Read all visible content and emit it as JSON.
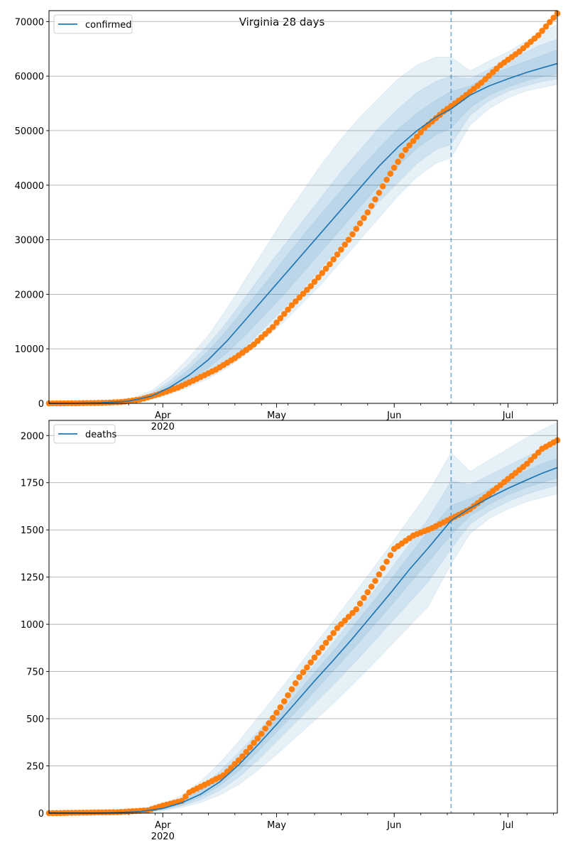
{
  "title": "Virginia 28 days",
  "chart_data": [
    {
      "type": "line",
      "legend": [
        "confirmed"
      ],
      "legend_position": "upper-left",
      "grid": "y",
      "x_type": "date",
      "xlim": [
        "2020-03-02",
        "2020-07-14"
      ],
      "forecast_start": "2020-06-16",
      "xticks_major": [
        {
          "date": "2020-04-01",
          "label": "Apr",
          "sublabel": "2020"
        },
        {
          "date": "2020-05-01",
          "label": "May",
          "sublabel": ""
        },
        {
          "date": "2020-06-01",
          "label": "Jun",
          "sublabel": ""
        },
        {
          "date": "2020-07-01",
          "label": "Jul",
          "sublabel": ""
        }
      ],
      "yticks": [
        "0",
        "10000",
        "20000",
        "30000",
        "40000",
        "50000",
        "60000",
        "70000"
      ],
      "ylim": [
        0,
        72000
      ],
      "series": [
        {
          "name": "confirmed",
          "kind": "model-median",
          "color": "#1f77b4",
          "x": [
            "2020-03-02",
            "2020-03-09",
            "2020-03-16",
            "2020-03-23",
            "2020-03-29",
            "2020-04-03",
            "2020-04-08",
            "2020-04-13",
            "2020-04-18",
            "2020-04-23",
            "2020-04-28",
            "2020-05-03",
            "2020-05-08",
            "2020-05-13",
            "2020-05-18",
            "2020-05-23",
            "2020-05-28",
            "2020-06-02",
            "2020-06-07",
            "2020-06-12",
            "2020-06-16",
            "2020-06-21",
            "2020-06-26",
            "2020-07-01",
            "2020-07-06",
            "2020-07-10",
            "2020-07-14"
          ],
          "y": [
            0,
            20,
            100,
            400,
            1300,
            3000,
            5200,
            8000,
            11500,
            15500,
            19500,
            23500,
            27500,
            31500,
            35500,
            39500,
            43500,
            47000,
            50000,
            52500,
            54000,
            56500,
            58200,
            59500,
            60700,
            61500,
            62300
          ],
          "bands": [
            {
              "lo": [
                0,
                0,
                60,
                250,
                750,
                1700,
                3000,
                4500,
                6500,
                9000,
                12000,
                15000,
                18500,
                22000,
                26000,
                30000,
                34000,
                38000,
                41500,
                44000,
                45000,
                51000,
                54000,
                56000,
                57300,
                57900,
                58500
              ],
              "hi": [
                0,
                50,
                200,
                700,
                2300,
                5000,
                8500,
                12500,
                17500,
                23000,
                28500,
                34000,
                39000,
                44000,
                48500,
                52500,
                56000,
                59500,
                62000,
                63500,
                63500,
                61000,
                62800,
                64500,
                66500,
                68000,
                69500
              ]
            },
            {
              "lo": [
                0,
                0,
                70,
                280,
                900,
                2000,
                3500,
                5500,
                7800,
                10500,
                14000,
                17500,
                21000,
                25000,
                29000,
                33000,
                37000,
                40500,
                44000,
                46500,
                47500,
                52800,
                55500,
                57200,
                58300,
                59000,
                59500
              ],
              "hi": [
                0,
                40,
                150,
                550,
                1900,
                4200,
                7200,
                10800,
                15000,
                19700,
                24500,
                29000,
                33500,
                38000,
                42500,
                46500,
                50500,
                54000,
                57000,
                59000,
                60000,
                59500,
                61300,
                63000,
                64500,
                65800,
                66800
              ]
            },
            {
              "lo": [
                0,
                0,
                80,
                330,
                1050,
                2400,
                4200,
                6500,
                9300,
                12700,
                16300,
                20000,
                24000,
                28000,
                32000,
                36000,
                40000,
                43500,
                46800,
                49200,
                50500,
                54200,
                56500,
                58000,
                59200,
                59900,
                60400
              ],
              "hi": [
                0,
                30,
                120,
                480,
                1600,
                3600,
                6300,
                9600,
                13500,
                17800,
                22000,
                26500,
                30800,
                35000,
                39000,
                43000,
                46800,
                50300,
                53200,
                55600,
                57200,
                58200,
                60200,
                61500,
                62800,
                63800,
                64800
              ]
            }
          ]
        },
        {
          "name": "",
          "kind": "observed",
          "color": "#ff7f0e",
          "x": [
            "2020-03-02",
            "2020-03-09",
            "2020-03-16",
            "2020-03-21",
            "2020-03-26",
            "2020-03-31",
            "2020-04-05",
            "2020-04-10",
            "2020-04-15",
            "2020-04-20",
            "2020-04-25",
            "2020-04-30",
            "2020-05-05",
            "2020-05-10",
            "2020-05-15",
            "2020-05-20",
            "2020-05-25",
            "2020-05-30",
            "2020-06-04",
            "2020-06-09",
            "2020-06-14",
            "2020-06-19",
            "2020-06-24",
            "2020-06-29",
            "2020-07-04",
            "2020-07-09",
            "2020-07-14"
          ],
          "y": [
            0,
            30,
            100,
            250,
            700,
            1700,
            2900,
            4500,
            6200,
            8300,
            10800,
            14000,
            18000,
            21500,
            25500,
            30000,
            35000,
            41000,
            46500,
            50500,
            53500,
            56000,
            58800,
            62000,
            64500,
            67500,
            71500
          ]
        }
      ]
    },
    {
      "type": "line",
      "legend": [
        "deaths"
      ],
      "legend_position": "upper-left",
      "grid": "y",
      "x_type": "date",
      "xlim": [
        "2020-03-02",
        "2020-07-14"
      ],
      "forecast_start": "2020-06-16",
      "xticks_major": [
        {
          "date": "2020-04-01",
          "label": "Apr",
          "sublabel": "2020"
        },
        {
          "date": "2020-05-01",
          "label": "May",
          "sublabel": ""
        },
        {
          "date": "2020-06-01",
          "label": "Jun",
          "sublabel": ""
        },
        {
          "date": "2020-07-01",
          "label": "Jul",
          "sublabel": ""
        }
      ],
      "yticks": [
        "0",
        "250",
        "500",
        "750",
        "1000",
        "1250",
        "1500",
        "1750",
        "2000"
      ],
      "ylim": [
        0,
        2080
      ],
      "series": [
        {
          "name": "deaths",
          "kind": "model-median",
          "color": "#1f77b4",
          "x": [
            "2020-03-02",
            "2020-03-16",
            "2020-03-26",
            "2020-04-01",
            "2020-04-06",
            "2020-04-11",
            "2020-04-16",
            "2020-04-21",
            "2020-04-26",
            "2020-05-01",
            "2020-05-06",
            "2020-05-11",
            "2020-05-16",
            "2020-05-21",
            "2020-05-26",
            "2020-05-31",
            "2020-06-05",
            "2020-06-10",
            "2020-06-16",
            "2020-06-21",
            "2020-06-26",
            "2020-07-01",
            "2020-07-06",
            "2020-07-10",
            "2020-07-14"
          ],
          "y": [
            0,
            0,
            8,
            25,
            55,
            100,
            165,
            255,
            360,
            470,
            585,
            700,
            810,
            925,
            1045,
            1165,
            1290,
            1405,
            1550,
            1615,
            1670,
            1720,
            1765,
            1800,
            1830
          ],
          "bands": [
            {
              "lo": [
                0,
                0,
                3,
                12,
                30,
                55,
                95,
                150,
                225,
                310,
                400,
                490,
                580,
                680,
                780,
                885,
                990,
                1095,
                1320,
                1480,
                1560,
                1610,
                1650,
                1670,
                1690
              ],
              "hi": [
                0,
                0,
                15,
                45,
                95,
                170,
                265,
                380,
                505,
                630,
                760,
                890,
                1020,
                1150,
                1285,
                1420,
                1560,
                1700,
                1910,
                1810,
                1870,
                1930,
                1990,
                2030,
                2070
              ]
            },
            {
              "lo": [
                0,
                0,
                4,
                16,
                38,
                70,
                120,
                190,
                280,
                380,
                480,
                580,
                680,
                785,
                895,
                1005,
                1115,
                1225,
                1400,
                1530,
                1600,
                1650,
                1690,
                1715,
                1735
              ],
              "hi": [
                0,
                0,
                12,
                37,
                78,
                140,
                220,
                320,
                430,
                545,
                665,
                785,
                905,
                1030,
                1160,
                1290,
                1425,
                1560,
                1760,
                1740,
                1790,
                1840,
                1890,
                1925,
                1955
              ]
            },
            {
              "lo": [
                0,
                0,
                5,
                20,
                45,
                85,
                145,
                225,
                325,
                430,
                535,
                645,
                755,
                865,
                980,
                1095,
                1215,
                1330,
                1475,
                1575,
                1635,
                1685,
                1725,
                1750,
                1775
              ],
              "hi": [
                0,
                0,
                10,
                30,
                65,
                120,
                190,
                285,
                395,
                505,
                625,
                745,
                860,
                985,
                1110,
                1235,
                1365,
                1490,
                1630,
                1665,
                1715,
                1765,
                1815,
                1850,
                1880
              ]
            }
          ]
        },
        {
          "name": "",
          "kind": "observed",
          "color": "#ff7f0e",
          "x": [
            "2020-03-02",
            "2020-03-20",
            "2020-03-28",
            "2020-04-01",
            "2020-04-06",
            "2020-04-08",
            "2020-04-12",
            "2020-04-17",
            "2020-04-22",
            "2020-04-27",
            "2020-05-02",
            "2020-05-07",
            "2020-05-12",
            "2020-05-17",
            "2020-05-22",
            "2020-05-27",
            "2020-06-01",
            "2020-06-06",
            "2020-06-11",
            "2020-06-16",
            "2020-06-21",
            "2020-06-26",
            "2020-07-01",
            "2020-07-06",
            "2020-07-10",
            "2020-07-14"
          ],
          "y": [
            0,
            5,
            15,
            40,
            65,
            110,
            150,
            200,
            300,
            420,
            560,
            720,
            850,
            980,
            1080,
            1230,
            1400,
            1470,
            1510,
            1560,
            1610,
            1690,
            1770,
            1850,
            1930,
            1975
          ]
        }
      ]
    }
  ]
}
